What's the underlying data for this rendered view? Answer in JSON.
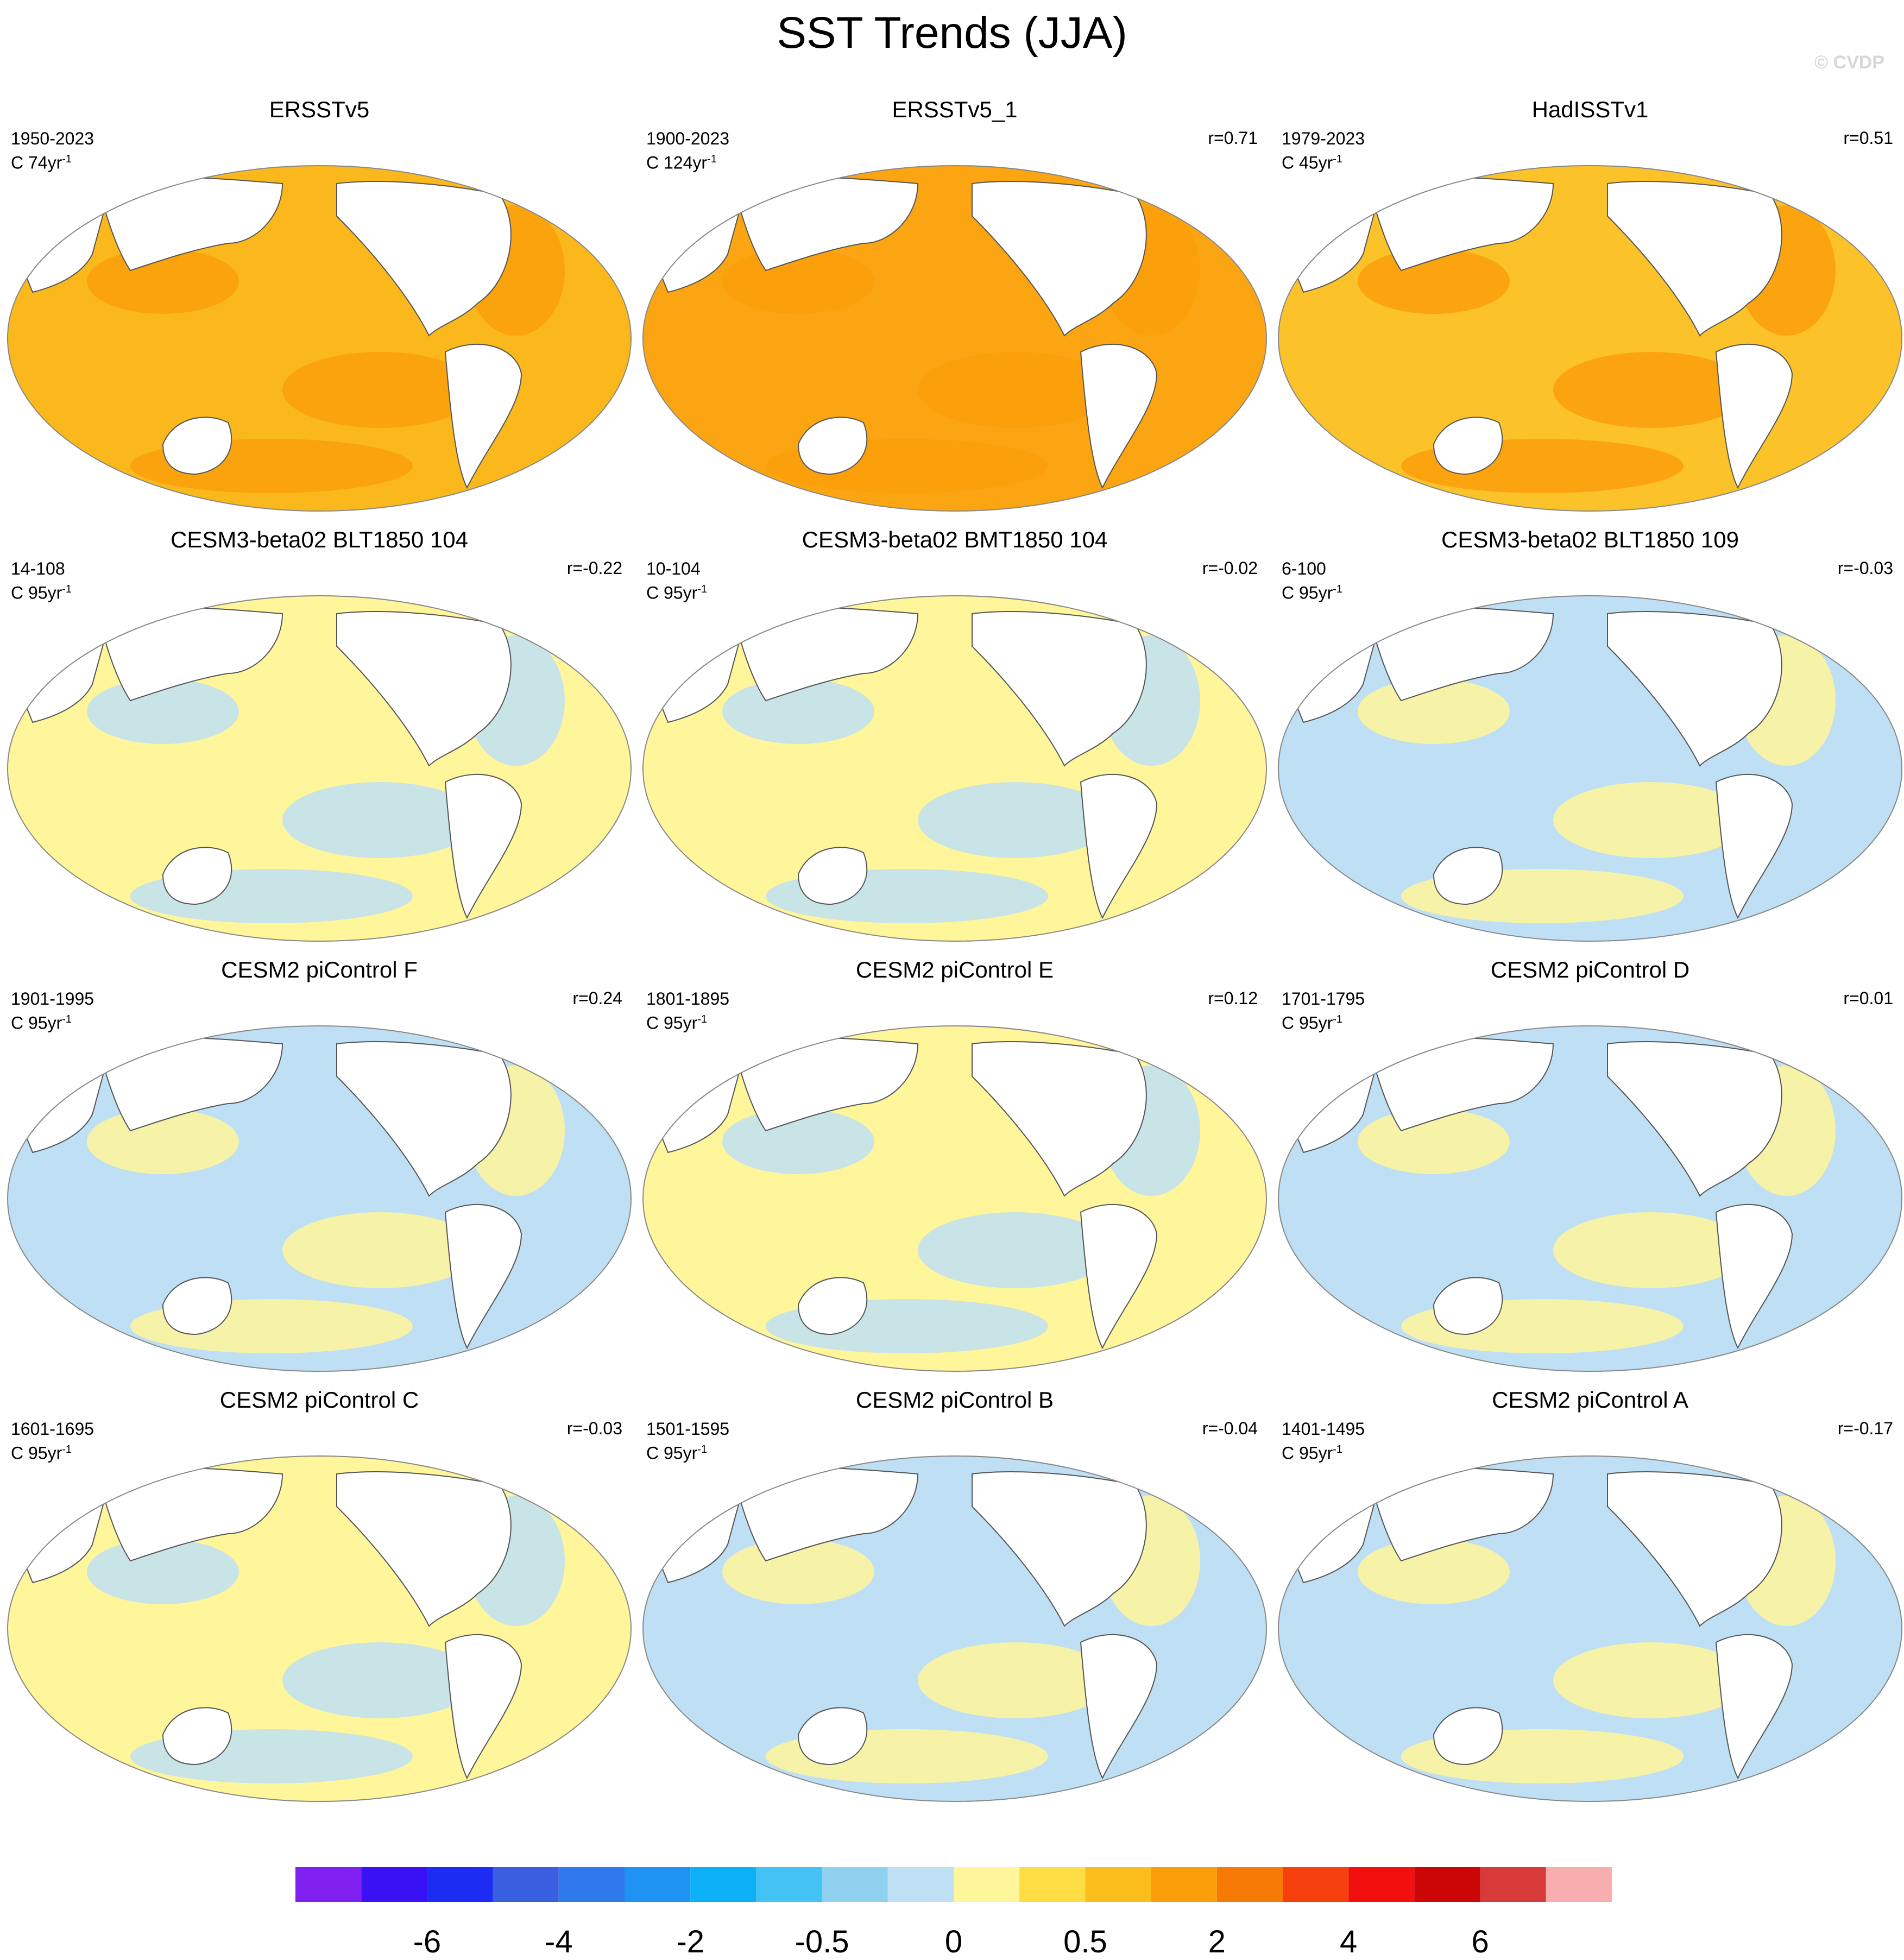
{
  "title": "SST Trends (JJA)",
  "watermark": "© CVDP",
  "panels": [
    {
      "name": "ERSSTv5",
      "period": "1950-2023",
      "units": "C 74yr",
      "corr": ""
    },
    {
      "name": "ERSSTv5_1",
      "period": "1900-2023",
      "units": "C 124yr",
      "corr": "r=0.71"
    },
    {
      "name": "HadISSTv1",
      "period": "1979-2023",
      "units": "C 45yr",
      "corr": "r=0.51"
    },
    {
      "name": "CESM3-beta02 BLT1850 104",
      "period": "14-108",
      "units": "C 95yr",
      "corr": "r=-0.22"
    },
    {
      "name": "CESM3-beta02 BMT1850 104",
      "period": "10-104",
      "units": "C 95yr",
      "corr": "r=-0.02"
    },
    {
      "name": "CESM3-beta02 BLT1850 109",
      "period": "6-100",
      "units": "C 95yr",
      "corr": "r=-0.03"
    },
    {
      "name": "CESM2 piControl F",
      "period": "1901-1995",
      "units": "C 95yr",
      "corr": "r=0.24"
    },
    {
      "name": "CESM2 piControl E",
      "period": "1801-1895",
      "units": "C 95yr",
      "corr": "r=0.12"
    },
    {
      "name": "CESM2 piControl D",
      "period": "1701-1795",
      "units": "C 95yr",
      "corr": "r=0.01"
    },
    {
      "name": "CESM2 piControl C",
      "period": "1601-1695",
      "units": "C 95yr",
      "corr": "r=-0.03"
    },
    {
      "name": "CESM2 piControl B",
      "period": "1501-1595",
      "units": "C 95yr",
      "corr": "r=-0.04"
    },
    {
      "name": "CESM2 piControl A",
      "period": "1401-1495",
      "units": "C 95yr",
      "corr": "r=-0.17"
    }
  ],
  "units_superscript": "-1",
  "colorbar": {
    "colors": [
      "#7f1ff0",
      "#3a10f5",
      "#1c2cf2",
      "#3a5ee0",
      "#2f79ec",
      "#1f93f4",
      "#0bb0f6",
      "#43c3f3",
      "#8fd0ee",
      "#bfe0f4",
      "#fff59a",
      "#fddc44",
      "#fbbd1c",
      "#fa9f0a",
      "#f87a06",
      "#f6400e",
      "#f40f0f",
      "#cc0606",
      "#d83a3a",
      "#f8aeae"
    ],
    "tick_labels": [
      "-6",
      "-4",
      "-2",
      "-0.5",
      "0",
      "0.5",
      "2",
      "4",
      "6"
    ]
  },
  "panel_base_colors": [
    "#fbb81c",
    "#fba512",
    "#fbc22a",
    "#fff59a",
    "#fff59a",
    "#bfe0f4",
    "#bfe0f4",
    "#fff59a",
    "#bfe0f4",
    "#fff59a",
    "#bfe0f4",
    "#bfe0f4"
  ]
}
